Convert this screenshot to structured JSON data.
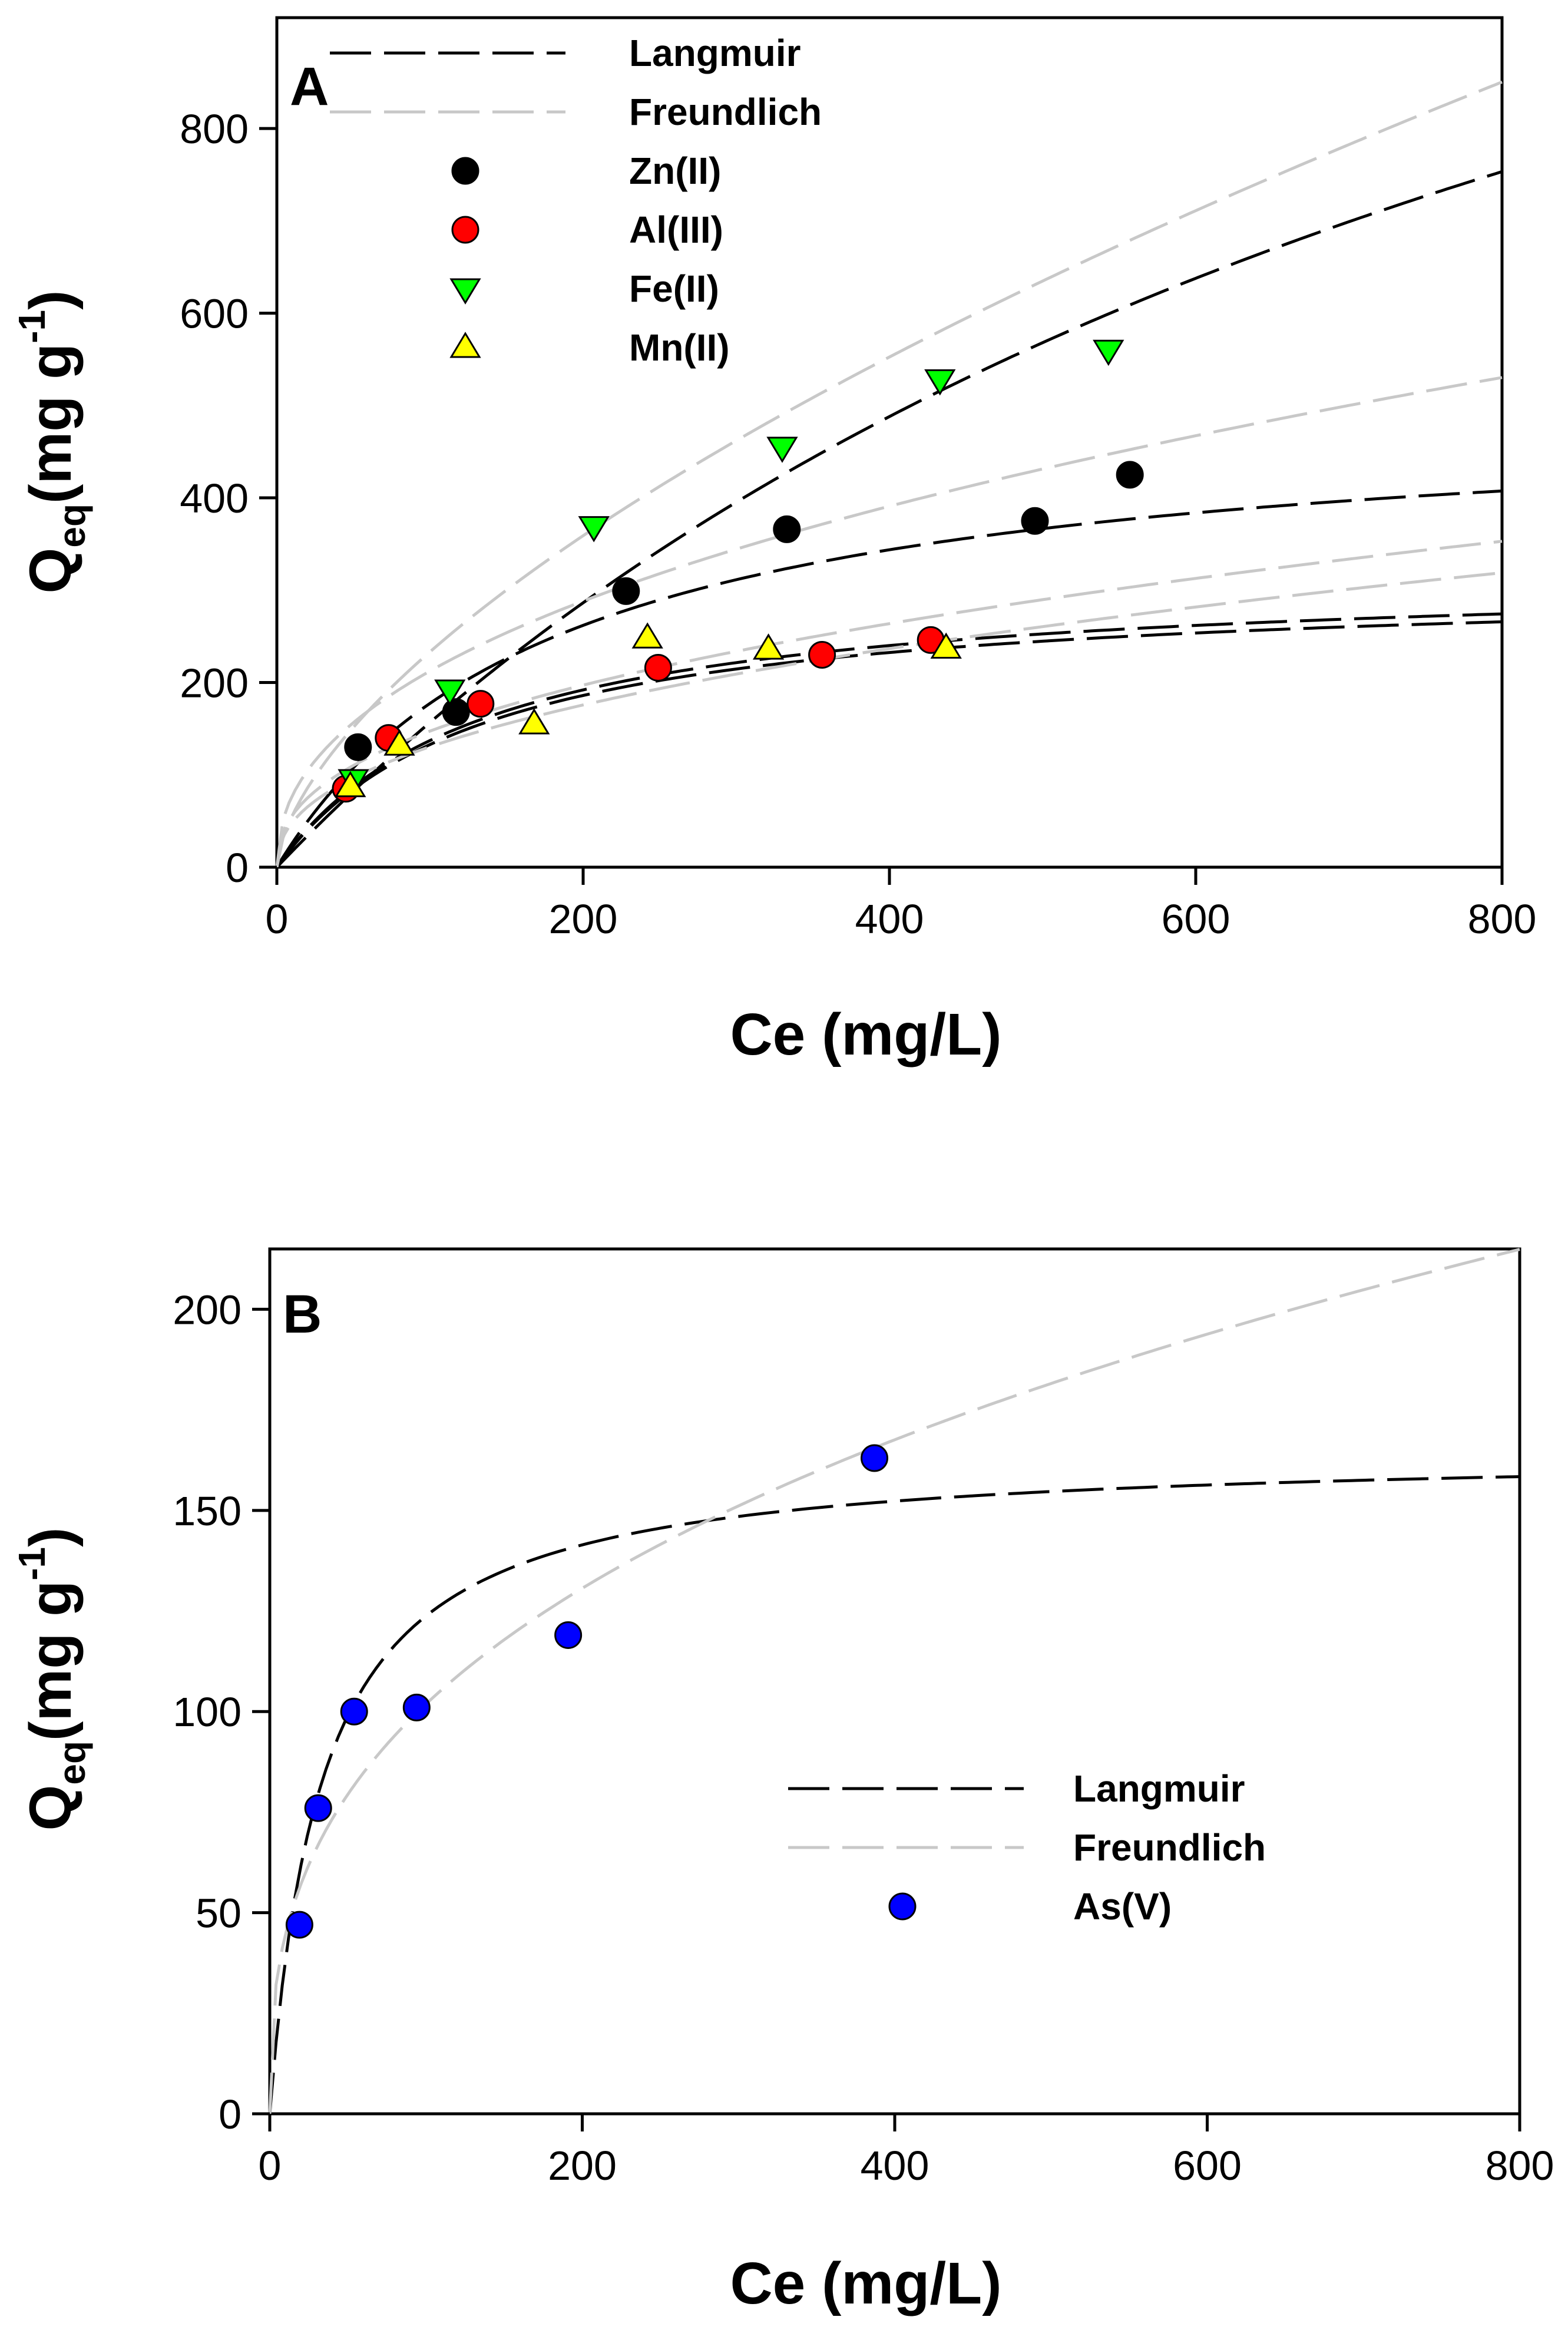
{
  "chart_data": [
    {
      "panel": "A",
      "type": "scatter",
      "xlabel": "Ce (mg/L)",
      "ylabel_main": "Q",
      "ylabel_sub": "eq",
      "ylabel_rest": "(mg g",
      "ylabel_sup": "-1",
      "ylabel_close": ")",
      "xlim": [
        0,
        800
      ],
      "ylim": [
        0,
        920
      ],
      "xticks": [
        0,
        200,
        400,
        600,
        800
      ],
      "yticks": [
        0,
        200,
        400,
        600,
        800
      ],
      "legend": [
        {
          "label": "Langmuir",
          "kind": "line",
          "color": "#000000"
        },
        {
          "label": "Freundlich",
          "kind": "line",
          "color": "#c8c8c8"
        },
        {
          "label": "Zn(II)",
          "kind": "circle",
          "color": "#000000"
        },
        {
          "label": "Al(III)",
          "kind": "circle",
          "color": "#ff0000"
        },
        {
          "label": "Fe(II)",
          "kind": "tri-down",
          "color": "#00ff00"
        },
        {
          "label": "Mn(II)",
          "kind": "tri-up",
          "color": "#ffff00"
        }
      ],
      "series": [
        {
          "name": "Zn(II)",
          "marker": "circle",
          "color": "#000000",
          "x": [
            53,
            117,
            228,
            333,
            495,
            557
          ],
          "y": [
            130,
            168,
            299,
            366,
            375,
            425
          ]
        },
        {
          "name": "Al(III)",
          "marker": "circle",
          "color": "#ff0000",
          "x": [
            45,
            73,
            133,
            249,
            356,
            427
          ],
          "y": [
            85,
            140,
            177,
            216,
            230,
            246
          ]
        },
        {
          "name": "Fe(II)",
          "marker": "tri-down",
          "color": "#00ff00",
          "x": [
            50,
            113,
            207,
            330,
            433,
            543
          ],
          "y": [
            95,
            192,
            369,
            455,
            528,
            560
          ]
        },
        {
          "name": "Mn(II)",
          "marker": "tri-up",
          "color": "#ffff00",
          "x": [
            48,
            80,
            168,
            242,
            321,
            437
          ],
          "y": [
            87,
            132,
            155,
            248,
            236,
            237
          ]
        }
      ],
      "fits": [
        {
          "model": "Langmuir",
          "for": "Fe(II)",
          "color": "#000000",
          "qmax": 1650,
          "K": 0.00105
        },
        {
          "model": "Langmuir",
          "for": "Zn(II)",
          "color": "#000000",
          "qmax": 500,
          "K": 0.0055
        },
        {
          "model": "Langmuir",
          "for": "Al(III)",
          "color": "#000000",
          "qmax": 320,
          "K": 0.0075
        },
        {
          "model": "Langmuir",
          "for": "Mn(II)",
          "color": "#000000",
          "qmax": 310,
          "K": 0.0075
        },
        {
          "model": "Freundlich",
          "for": "Fe(II)",
          "color": "#c8c8c8",
          "k": 13.3,
          "n": 0.622
        },
        {
          "model": "Freundlich",
          "for": "Zn(II)",
          "color": "#c8c8c8",
          "k": 28.0,
          "n": 0.44
        },
        {
          "model": "Freundlich",
          "for": "Al(III)",
          "color": "#c8c8c8",
          "k": 21.3,
          "n": 0.42
        },
        {
          "model": "Freundlich",
          "for": "Mn(II)",
          "color": "#c8c8c8",
          "k": 18.0,
          "n": 0.43
        }
      ]
    },
    {
      "panel": "B",
      "type": "scatter",
      "xlabel": "Ce (mg/L)",
      "ylabel_main": "Q",
      "ylabel_sub": "eq",
      "ylabel_rest": "(mg g",
      "ylabel_sup": "-1",
      "ylabel_close": ")",
      "xlim": [
        0,
        800
      ],
      "ylim": [
        0,
        215
      ],
      "xticks": [
        0,
        200,
        400,
        600,
        800
      ],
      "yticks": [
        0,
        50,
        100,
        150,
        200
      ],
      "legend": [
        {
          "label": "Langmuir",
          "kind": "line",
          "color": "#000000"
        },
        {
          "label": "Freundlich",
          "kind": "line",
          "color": "#c8c8c8"
        },
        {
          "label": "As(V)",
          "kind": "circle",
          "color": "#0000ff"
        }
      ],
      "series": [
        {
          "name": "As(V)",
          "marker": "circle",
          "color": "#0000ff",
          "x": [
            19,
            31,
            54,
            94,
            191,
            387
          ],
          "y": [
            47,
            76,
            100,
            101,
            119,
            163
          ]
        }
      ],
      "fits": [
        {
          "model": "Langmuir",
          "for": "As(V)",
          "color": "#000000",
          "qmax": 165,
          "K": 0.03
        },
        {
          "model": "Freundlich",
          "for": "As(V)",
          "color": "#c8c8c8",
          "k": 19.5,
          "n": 0.359
        }
      ]
    }
  ]
}
